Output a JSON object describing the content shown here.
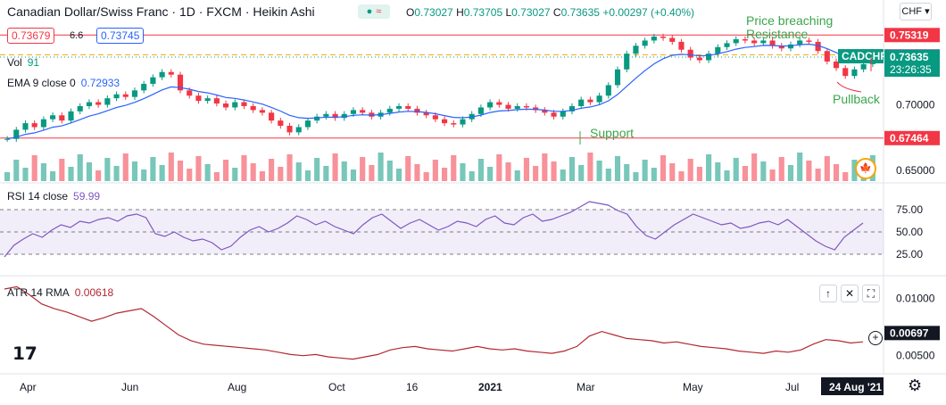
{
  "header": {
    "title": "Canadian Dollar/Swiss Franc · 1D · FXCM · Heikin Ashi",
    "ohlc": {
      "o_label": "O",
      "o": "0.73027",
      "h_label": "H",
      "h": "0.73705",
      "l_label": "L",
      "l": "0.73027",
      "c_label": "C",
      "c": "0.73635",
      "change": "+0.00297 (+0.40%)"
    },
    "bid": "0.73679",
    "spread": "6.6",
    "ask": "0.73745",
    "currency": "CHF",
    "toggle_icon": "approx-equal-icon"
  },
  "indicators": {
    "vol": {
      "label": "Vol",
      "value": "91"
    },
    "ema": {
      "label": "EMA 9 close 0",
      "value": "0.72933"
    },
    "rsi": {
      "label": "RSI 14 close",
      "value": "59.99"
    },
    "atr": {
      "label": "ATR 14 RMA",
      "value": "0.00618"
    }
  },
  "annotations": {
    "resistance": "Price breaching\nResistance",
    "support": "Support",
    "pullback": "Pullback"
  },
  "symbol_tag": "CADCHF",
  "countdown": "23:26:35",
  "date_tag": "24 Aug '21",
  "colors": {
    "up": "#089981",
    "down": "#f23645",
    "ema": "#2962ff",
    "rsi": "#7e57c2",
    "atr": "#b22833",
    "annotation": "#3aa64b",
    "level": "#f23645",
    "dotted": "#089981",
    "dashed": "#f7a600"
  },
  "chart_data": [
    {
      "type": "candlestick",
      "title": "Canadian Dollar/Swiss Franc · 1D · FXCM · Heikin Ashi",
      "x_ticks": [
        "Apr",
        "Jun",
        "Aug",
        "Oct",
        "16",
        "2021",
        "Mar",
        "May",
        "Jul"
      ],
      "y_ticks": [
        "0.70000",
        "0.65000"
      ],
      "price_levels": [
        {
          "name": "resistance",
          "value": "0.75319"
        },
        {
          "name": "support",
          "value": "0.67464"
        }
      ],
      "last_price": "0.73635",
      "bid_line": "0.73679",
      "series_close": [
        0.674,
        0.681,
        0.686,
        0.683,
        0.689,
        0.692,
        0.688,
        0.695,
        0.699,
        0.702,
        0.7,
        0.705,
        0.708,
        0.706,
        0.711,
        0.716,
        0.721,
        0.725,
        0.723,
        0.711,
        0.707,
        0.703,
        0.705,
        0.701,
        0.698,
        0.702,
        0.699,
        0.696,
        0.694,
        0.688,
        0.684,
        0.679,
        0.683,
        0.688,
        0.691,
        0.693,
        0.69,
        0.693,
        0.696,
        0.694,
        0.691,
        0.694,
        0.697,
        0.699,
        0.697,
        0.694,
        0.692,
        0.689,
        0.686,
        0.685,
        0.689,
        0.693,
        0.698,
        0.702,
        0.7,
        0.697,
        0.699,
        0.698,
        0.696,
        0.694,
        0.691,
        0.695,
        0.699,
        0.704,
        0.702,
        0.707,
        0.715,
        0.727,
        0.739,
        0.745,
        0.749,
        0.752,
        0.751,
        0.748,
        0.742,
        0.736,
        0.734,
        0.739,
        0.744,
        0.747,
        0.75,
        0.749,
        0.747,
        0.749,
        0.745,
        0.743,
        0.746,
        0.749,
        0.748,
        0.741,
        0.733,
        0.728,
        0.722,
        0.727,
        0.731,
        0.736
      ]
    },
    {
      "type": "bar",
      "name": "Vol",
      "last_value": "91"
    },
    {
      "type": "line",
      "name": "RSI 14 close",
      "y_ticks": [
        "75.00",
        "50.00",
        "25.00"
      ],
      "last_value": "59.99",
      "values": [
        22,
        35,
        42,
        48,
        44,
        52,
        58,
        55,
        62,
        60,
        64,
        66,
        62,
        68,
        70,
        66,
        48,
        45,
        50,
        44,
        40,
        42,
        38,
        30,
        34,
        44,
        52,
        56,
        50,
        54,
        60,
        68,
        64,
        58,
        62,
        56,
        52,
        48,
        58,
        66,
        70,
        62,
        54,
        60,
        64,
        58,
        52,
        56,
        62,
        60,
        56,
        64,
        68,
        60,
        58,
        66,
        70,
        62,
        64,
        68,
        72,
        78,
        84,
        82,
        80,
        74,
        70,
        56,
        46,
        42,
        50,
        58,
        64,
        70,
        66,
        62,
        58,
        60,
        54,
        56,
        60,
        62,
        58,
        64,
        56,
        48,
        40,
        34,
        30,
        44,
        52,
        60
      ]
    },
    {
      "type": "line",
      "name": "ATR 14 RMA",
      "y_ticks": [
        "0.01000",
        "0.00500"
      ],
      "last_value": "0.00618",
      "axis_tag": "0.00697",
      "values": [
        0.0108,
        0.011,
        0.0103,
        0.0095,
        0.0091,
        0.0088,
        0.0084,
        0.008,
        0.0083,
        0.0087,
        0.0089,
        0.0091,
        0.0084,
        0.0076,
        0.0068,
        0.0063,
        0.006,
        0.0059,
        0.0058,
        0.0057,
        0.0056,
        0.0055,
        0.0053,
        0.0051,
        0.005,
        0.0051,
        0.0049,
        0.0048,
        0.0047,
        0.0049,
        0.0051,
        0.0055,
        0.0057,
        0.0058,
        0.0056,
        0.0055,
        0.0054,
        0.0056,
        0.0058,
        0.0056,
        0.0055,
        0.0056,
        0.0054,
        0.0053,
        0.0052,
        0.0054,
        0.0058,
        0.0067,
        0.0071,
        0.0068,
        0.0065,
        0.0064,
        0.0063,
        0.0061,
        0.0062,
        0.006,
        0.0058,
        0.0057,
        0.0056,
        0.0054,
        0.0053,
        0.0052,
        0.0054,
        0.0053,
        0.0055,
        0.006,
        0.0064,
        0.0063,
        0.0061,
        0.0062
      ]
    }
  ]
}
